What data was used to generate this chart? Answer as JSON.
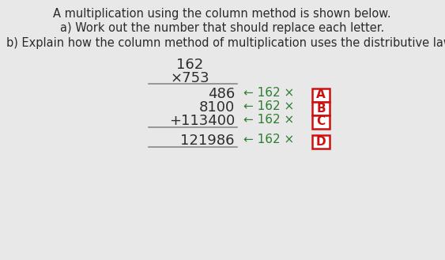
{
  "bg_color": "#e8e8e8",
  "title_line1": "A multiplication using the column method is shown below.",
  "title_line2": "a) Work out the number that should replace each letter.",
  "title_line3": "b) Explain how the column method of multiplication uses the distributive law.",
  "mult_num1": "162",
  "mult_num2": "×753",
  "rows": [
    {
      "left": "486",
      "arrow": "← 162 ×",
      "letter": "A"
    },
    {
      "left": "8100",
      "arrow": "← 162 ×",
      "letter": "B"
    },
    {
      "left": "+113400",
      "arrow": "← 162 ×",
      "letter": "C"
    },
    {
      "left": "121986",
      "arrow": "← 162 ×",
      "letter": "D"
    }
  ],
  "box_color": "#cc1111",
  "text_color": "#2a2a2a",
  "number_color": "#2d2d2d",
  "arrow_color": "#2e7d32",
  "letter_color": "#cc1111",
  "line_color": "#888888",
  "font_size_title": 10.5,
  "font_size_mult": 13,
  "font_size_rows": 13,
  "font_size_arrow": 11
}
